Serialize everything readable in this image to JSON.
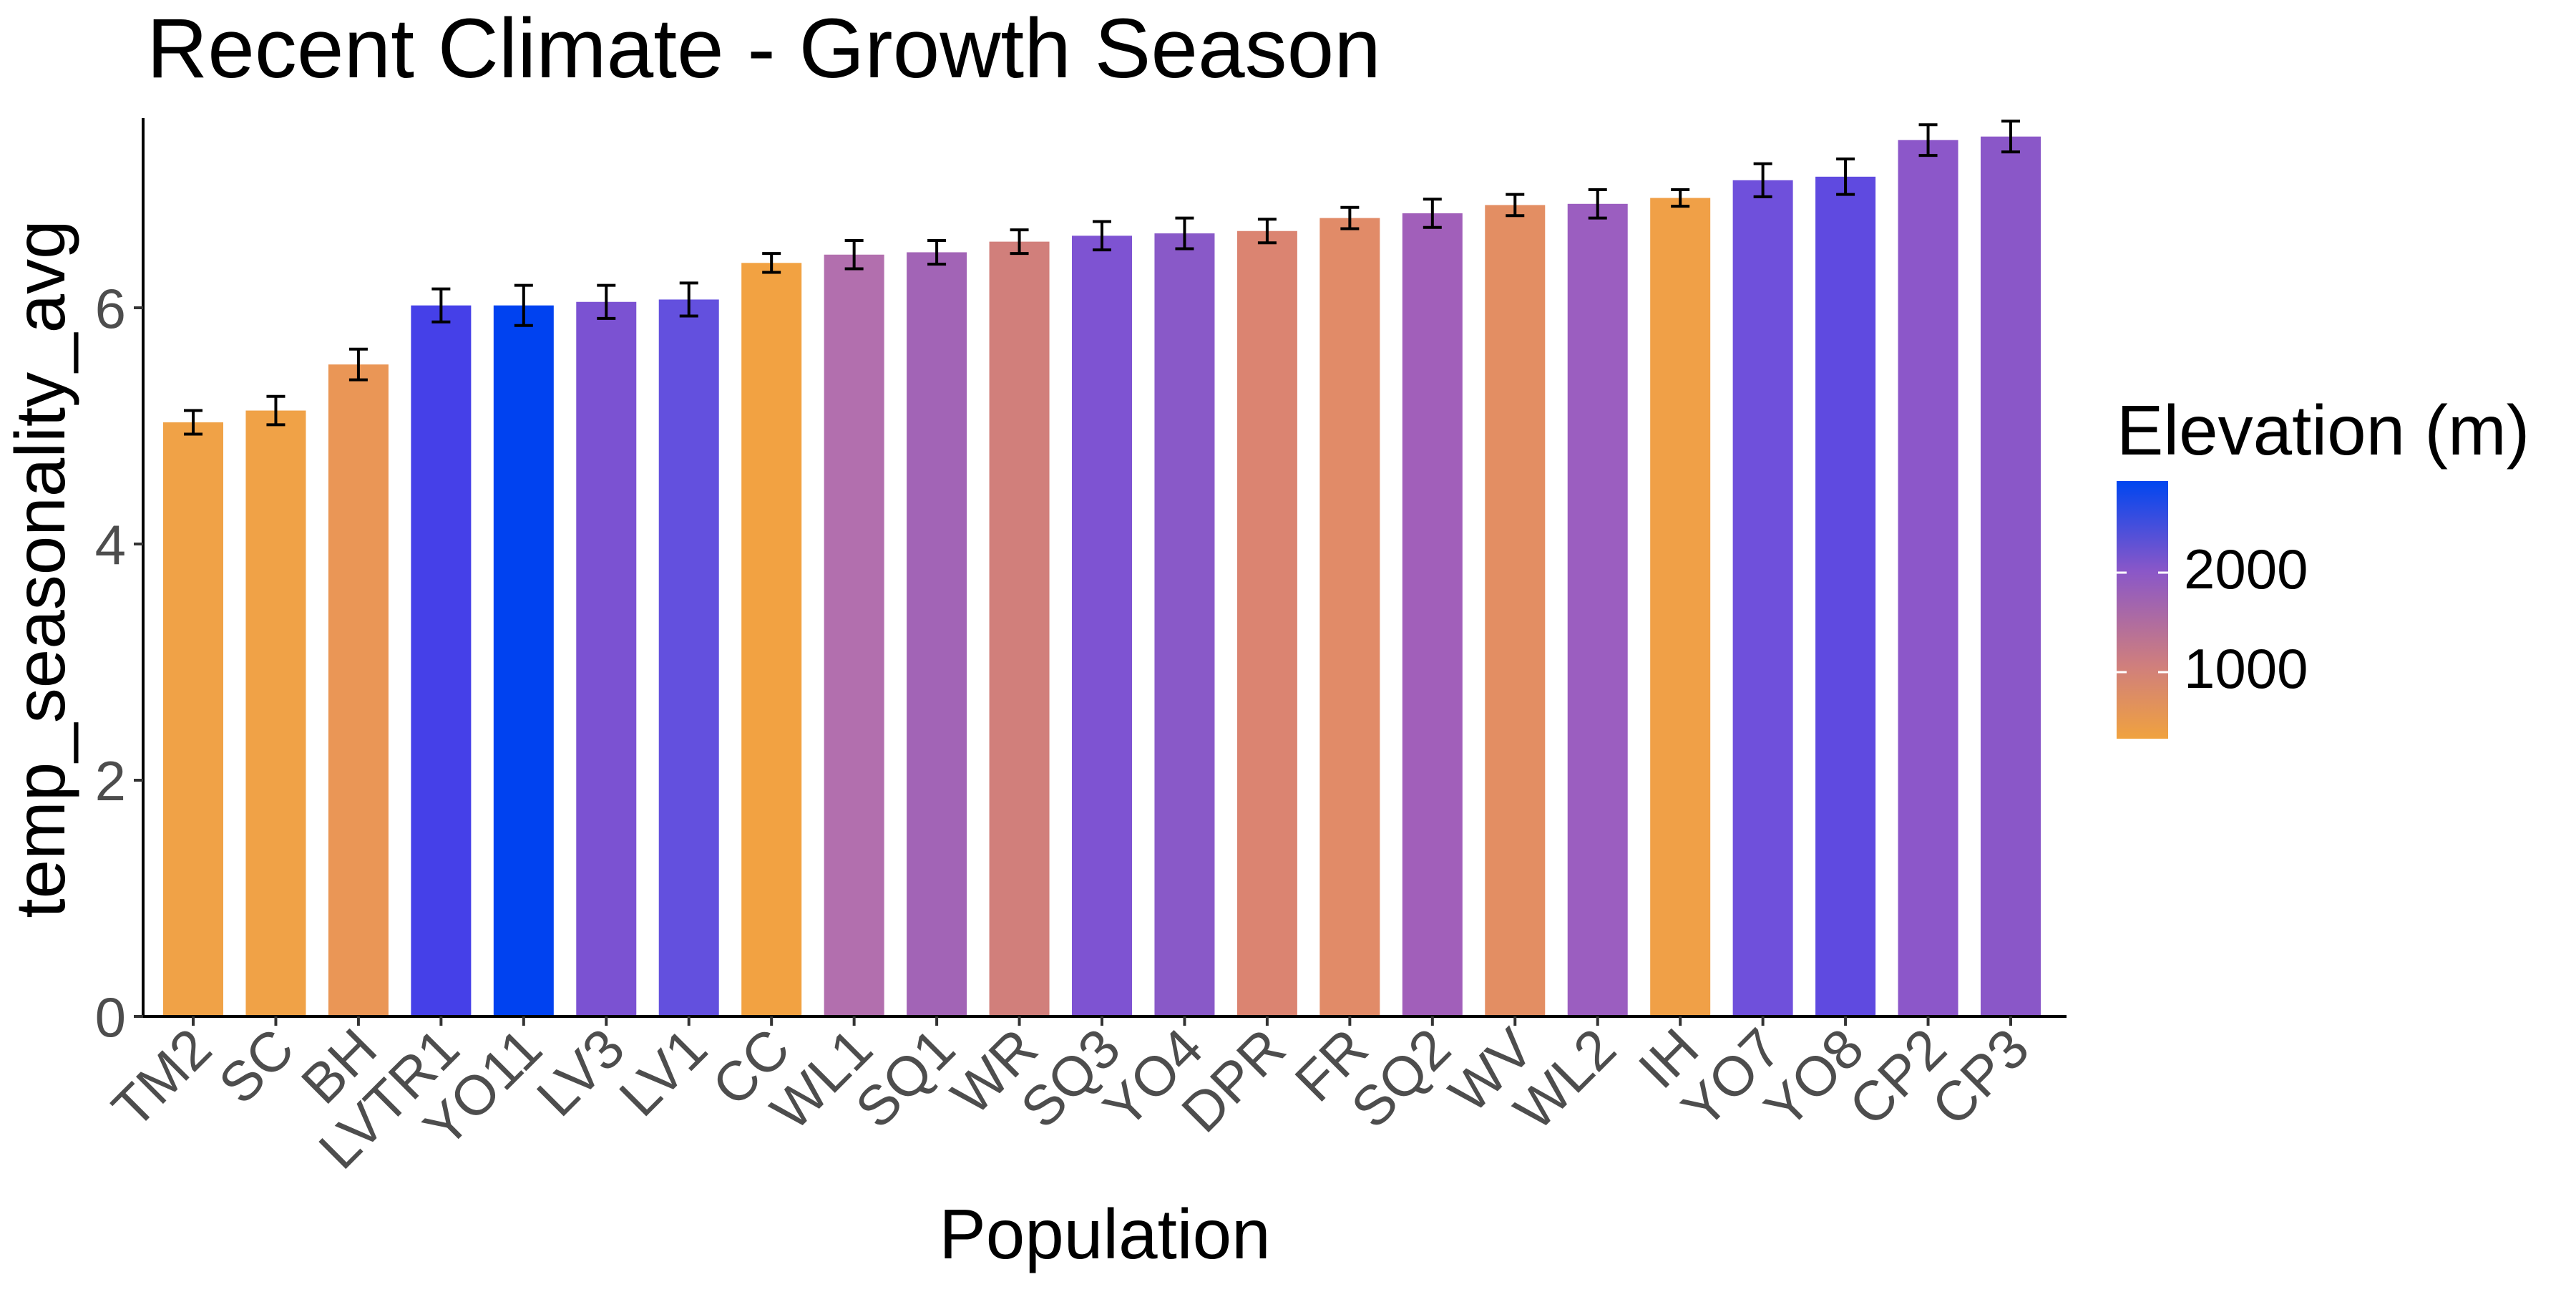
{
  "chart_data": {
    "type": "bar",
    "title": "Recent Climate - Growth Season",
    "xlabel": "Population",
    "ylabel": "temp_seasonality_avg",
    "ylim": [
      0,
      7.65
    ],
    "yticks": [
      0,
      2,
      4,
      6
    ],
    "grid": false,
    "categories": [
      "TM2",
      "SC",
      "BH",
      "LVTR1",
      "YO11",
      "LV3",
      "LV1",
      "CC",
      "WL1",
      "SQ1",
      "WR",
      "SQ3",
      "YO4",
      "DPR",
      "FR",
      "SQ2",
      "WV",
      "WL2",
      "IH",
      "YO7",
      "YO8",
      "CP2",
      "CP3"
    ],
    "values": [
      5.03,
      5.13,
      5.52,
      6.02,
      6.02,
      6.05,
      6.07,
      6.38,
      6.45,
      6.47,
      6.56,
      6.61,
      6.63,
      6.65,
      6.76,
      6.8,
      6.87,
      6.88,
      6.93,
      7.08,
      7.11,
      7.42,
      7.45
    ],
    "error_low": [
      4.93,
      5.01,
      5.39,
      5.88,
      5.85,
      5.91,
      5.93,
      6.3,
      6.33,
      6.37,
      6.46,
      6.49,
      6.5,
      6.55,
      6.67,
      6.68,
      6.78,
      6.76,
      6.86,
      6.94,
      6.96,
      7.29,
      7.32
    ],
    "error_high": [
      5.13,
      5.25,
      5.65,
      6.16,
      6.19,
      6.19,
      6.21,
      6.46,
      6.57,
      6.57,
      6.66,
      6.73,
      6.76,
      6.75,
      6.85,
      6.92,
      6.96,
      7.0,
      7.0,
      7.22,
      7.26,
      7.55,
      7.58
    ],
    "bar_colors": [
      "#f0a247",
      "#f0a247",
      "#ea9656",
      "#4540e8",
      "#0042f0",
      "#7b52d2",
      "#6350de",
      "#f2a242",
      "#b26fae",
      "#a264b6",
      "#d17f7b",
      "#7e53d2",
      "#8959c8",
      "#db8471",
      "#e18b68",
      "#a15fba",
      "#e38e63",
      "#9b5ec0",
      "#f0a047",
      "#6f50db",
      "#5f4ae0",
      "#8c57c9",
      "#8a57c8"
    ],
    "legend": {
      "title": "Elevation (m)",
      "labels": [
        "2000",
        "1000"
      ],
      "placement": "right",
      "gradient": [
        "#0046f0",
        "#8a57c8",
        "#d07f7c",
        "#f0a23f"
      ]
    }
  }
}
